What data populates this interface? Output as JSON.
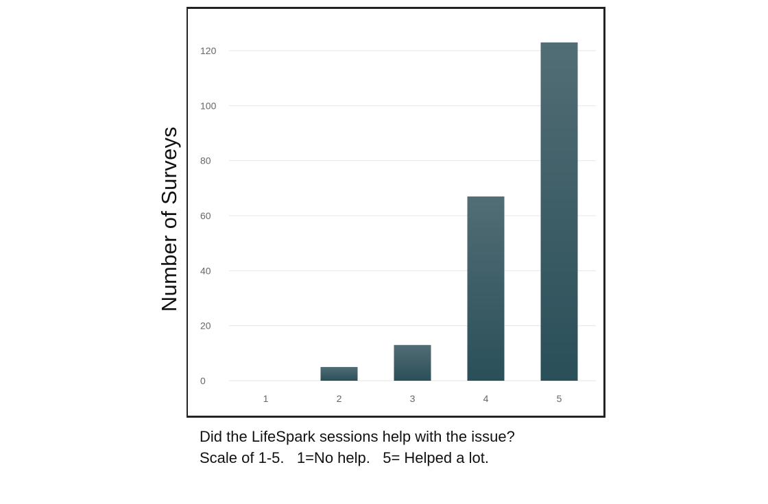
{
  "chart_data": {
    "type": "bar",
    "title": "",
    "xlabel": "",
    "ylabel": "Number of Surveys",
    "categories": [
      "1",
      "2",
      "3",
      "4",
      "5"
    ],
    "values": [
      0,
      5,
      13,
      67,
      123
    ],
    "ylim": [
      0,
      120
    ],
    "yticks": [
      "0",
      "20",
      "40",
      "60",
      "80",
      "100",
      "120"
    ],
    "grid": true,
    "legend": "none",
    "bar_color_top": "#526d75",
    "bar_color_bottom": "#2a4f59"
  },
  "caption": {
    "line1": "Did the LifeSpark sessions help with the issue?",
    "line2": "Scale of 1-5.   1=No help.   5= Helped a lot."
  }
}
